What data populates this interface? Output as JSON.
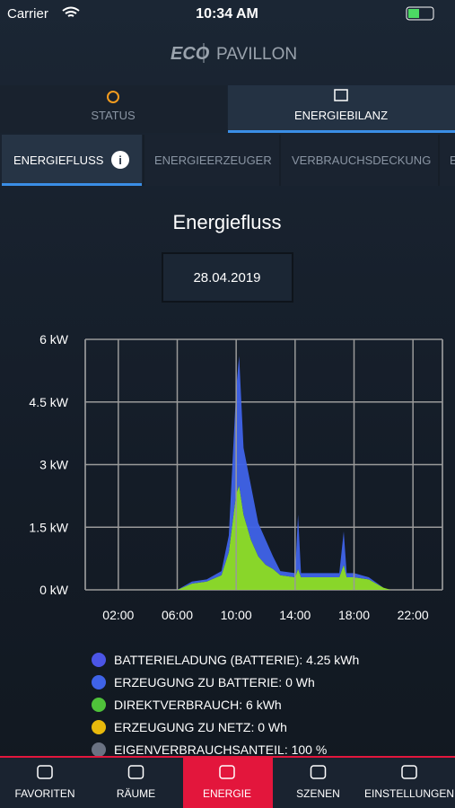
{
  "status_bar": {
    "carrier": "Carrier",
    "time": "10:34 AM"
  },
  "header": {
    "logo": "ECO",
    "title": "PAVILLON"
  },
  "tabs": [
    "STATUS",
    "ENERGIEBILANZ"
  ],
  "subtabs": [
    "ENERGIEFLUSS",
    "ENERGIEERZEUGER",
    "VERBRAUCHSDECKUNG",
    "E"
  ],
  "date": "28.04.2019",
  "chart_data": {
    "type": "area",
    "title": "Energiefluss",
    "x": [
      6,
      7,
      8,
      9,
      9.5,
      10,
      10.2,
      10.5,
      11,
      11.5,
      12,
      12.5,
      13,
      14,
      14.2,
      14.4,
      15,
      16,
      17,
      17.3,
      17.5,
      18,
      19,
      20,
      20.5
    ],
    "series": [
      {
        "color": "#8fe02a",
        "values": [
          0,
          0.15,
          0.2,
          0.35,
          0.9,
          2.3,
          2.5,
          1.8,
          1.2,
          0.8,
          0.6,
          0.5,
          0.35,
          0.3,
          0.5,
          0.3,
          0.3,
          0.3,
          0.3,
          0.6,
          0.3,
          0.3,
          0.25,
          0.05,
          0
        ]
      },
      {
        "color": "#3f63e8",
        "values": [
          0,
          0.05,
          0.05,
          0.1,
          0.4,
          2.5,
          3.1,
          1.6,
          1.3,
          0.8,
          0.6,
          0.3,
          0.1,
          0.1,
          1.3,
          0.1,
          0.1,
          0.1,
          0.1,
          0.8,
          0.1,
          0.1,
          0.05,
          0,
          0
        ]
      }
    ],
    "xlim": [
      0,
      24
    ],
    "xticks": [
      {
        "value": 2,
        "label": "02:00"
      },
      {
        "value": 6,
        "label": "06:00"
      },
      {
        "value": 10,
        "label": "10:00"
      },
      {
        "value": 14,
        "label": "14:00"
      },
      {
        "value": 18,
        "label": "18:00"
      },
      {
        "value": 22,
        "label": "22:00"
      }
    ],
    "ylim": [
      0,
      6
    ],
    "yticks": [
      {
        "value": 0,
        "label": "0 kW"
      },
      {
        "value": 1.5,
        "label": "1.5 kW"
      },
      {
        "value": 3,
        "label": "3 kW"
      },
      {
        "value": 4.5,
        "label": "4.5 kW"
      },
      {
        "value": 6,
        "label": "6 kW"
      }
    ],
    "grid": true
  },
  "legend": [
    {
      "label": "BATTERIELADUNG (BATTERIE): 4.25 kWh",
      "color": "#4b55e6"
    },
    {
      "label": "ERZEUGUNG ZU BATTERIE: 0 Wh",
      "color": "#3f63e8"
    },
    {
      "label": "DIREKTVERBRAUCH: 6 kWh",
      "color": "#4fc23a"
    },
    {
      "label": "ERZEUGUNG ZU NETZ: 0 Wh",
      "color": "#e8b90c"
    },
    {
      "label": "EIGENVERBRAUCHSANTEIL: 100 %",
      "color": "#6a7282"
    }
  ],
  "nav": [
    "FAVORITEN",
    "RÄUME",
    "ENERGIE",
    "SZENEN",
    "EINSTELLUNGEN"
  ]
}
